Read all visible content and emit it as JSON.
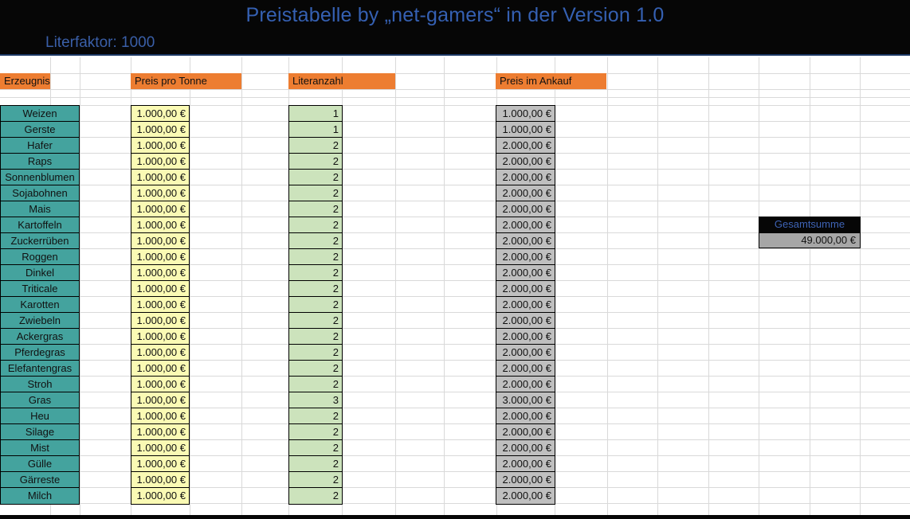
{
  "header": {
    "title": "Preistabelle by „net-gamers“ in der Version 1.0",
    "literfaktor": "Literfaktor: 1000"
  },
  "columns": {
    "erzeugnis": "Erzeugnis",
    "preis_pro_tonne": "Preis pro Tonne",
    "literanzahl": "Literanzahl",
    "preis_im_ankauf": "Preis im Ankauf"
  },
  "rows": [
    {
      "erzeugnis": "Weizen",
      "preis_pro_tonne": "1.000,00 €",
      "literanzahl": "1",
      "preis_im_ankauf": "1.000,00 €"
    },
    {
      "erzeugnis": "Gerste",
      "preis_pro_tonne": "1.000,00 €",
      "literanzahl": "1",
      "preis_im_ankauf": "1.000,00 €"
    },
    {
      "erzeugnis": "Hafer",
      "preis_pro_tonne": "1.000,00 €",
      "literanzahl": "2",
      "preis_im_ankauf": "2.000,00 €"
    },
    {
      "erzeugnis": "Raps",
      "preis_pro_tonne": "1.000,00 €",
      "literanzahl": "2",
      "preis_im_ankauf": "2.000,00 €"
    },
    {
      "erzeugnis": "Sonnenblumen",
      "preis_pro_tonne": "1.000,00 €",
      "literanzahl": "2",
      "preis_im_ankauf": "2.000,00 €"
    },
    {
      "erzeugnis": "Sojabohnen",
      "preis_pro_tonne": "1.000,00 €",
      "literanzahl": "2",
      "preis_im_ankauf": "2.000,00 €"
    },
    {
      "erzeugnis": "Mais",
      "preis_pro_tonne": "1.000,00 €",
      "literanzahl": "2",
      "preis_im_ankauf": "2.000,00 €"
    },
    {
      "erzeugnis": "Kartoffeln",
      "preis_pro_tonne": "1.000,00 €",
      "literanzahl": "2",
      "preis_im_ankauf": "2.000,00 €"
    },
    {
      "erzeugnis": "Zuckerrüben",
      "preis_pro_tonne": "1.000,00 €",
      "literanzahl": "2",
      "preis_im_ankauf": "2.000,00 €"
    },
    {
      "erzeugnis": "Roggen",
      "preis_pro_tonne": "1.000,00 €",
      "literanzahl": "2",
      "preis_im_ankauf": "2.000,00 €"
    },
    {
      "erzeugnis": "Dinkel",
      "preis_pro_tonne": "1.000,00 €",
      "literanzahl": "2",
      "preis_im_ankauf": "2.000,00 €"
    },
    {
      "erzeugnis": "Triticale",
      "preis_pro_tonne": "1.000,00 €",
      "literanzahl": "2",
      "preis_im_ankauf": "2.000,00 €"
    },
    {
      "erzeugnis": "Karotten",
      "preis_pro_tonne": "1.000,00 €",
      "literanzahl": "2",
      "preis_im_ankauf": "2.000,00 €"
    },
    {
      "erzeugnis": "Zwiebeln",
      "preis_pro_tonne": "1.000,00 €",
      "literanzahl": "2",
      "preis_im_ankauf": "2.000,00 €"
    },
    {
      "erzeugnis": "Ackergras",
      "preis_pro_tonne": "1.000,00 €",
      "literanzahl": "2",
      "preis_im_ankauf": "2.000,00 €"
    },
    {
      "erzeugnis": "Pferdegras",
      "preis_pro_tonne": "1.000,00 €",
      "literanzahl": "2",
      "preis_im_ankauf": "2.000,00 €"
    },
    {
      "erzeugnis": "Elefantengras",
      "preis_pro_tonne": "1.000,00 €",
      "literanzahl": "2",
      "preis_im_ankauf": "2.000,00 €"
    },
    {
      "erzeugnis": "Stroh",
      "preis_pro_tonne": "1.000,00 €",
      "literanzahl": "2",
      "preis_im_ankauf": "2.000,00 €"
    },
    {
      "erzeugnis": "Gras",
      "preis_pro_tonne": "1.000,00 €",
      "literanzahl": "3",
      "preis_im_ankauf": "3.000,00 €"
    },
    {
      "erzeugnis": "Heu",
      "preis_pro_tonne": "1.000,00 €",
      "literanzahl": "2",
      "preis_im_ankauf": "2.000,00 €"
    },
    {
      "erzeugnis": "Silage",
      "preis_pro_tonne": "1.000,00 €",
      "literanzahl": "2",
      "preis_im_ankauf": "2.000,00 €"
    },
    {
      "erzeugnis": "Mist",
      "preis_pro_tonne": "1.000,00 €",
      "literanzahl": "2",
      "preis_im_ankauf": "2.000,00 €"
    },
    {
      "erzeugnis": "Gülle",
      "preis_pro_tonne": "1.000,00 €",
      "literanzahl": "2",
      "preis_im_ankauf": "2.000,00 €"
    },
    {
      "erzeugnis": "Gärreste",
      "preis_pro_tonne": "1.000,00 €",
      "literanzahl": "2",
      "preis_im_ankauf": "2.000,00 €"
    },
    {
      "erzeugnis": "Milch",
      "preis_pro_tonne": "1.000,00 €",
      "literanzahl": "2",
      "preis_im_ankauf": "2.000,00 €"
    }
  ],
  "summary": {
    "label": "Gesamtsumme",
    "value": "49.000,00 €"
  },
  "colors": {
    "accent_orange": "#ed7d31",
    "product_teal": "#44a39e",
    "price_yellow": "#fafab4",
    "liter_green": "#cce3bc",
    "ankauf_gray": "#bfbfbf",
    "summary_gray": "#a6a6a6",
    "title_blue": "#3560b2",
    "band_black": "#060606"
  }
}
